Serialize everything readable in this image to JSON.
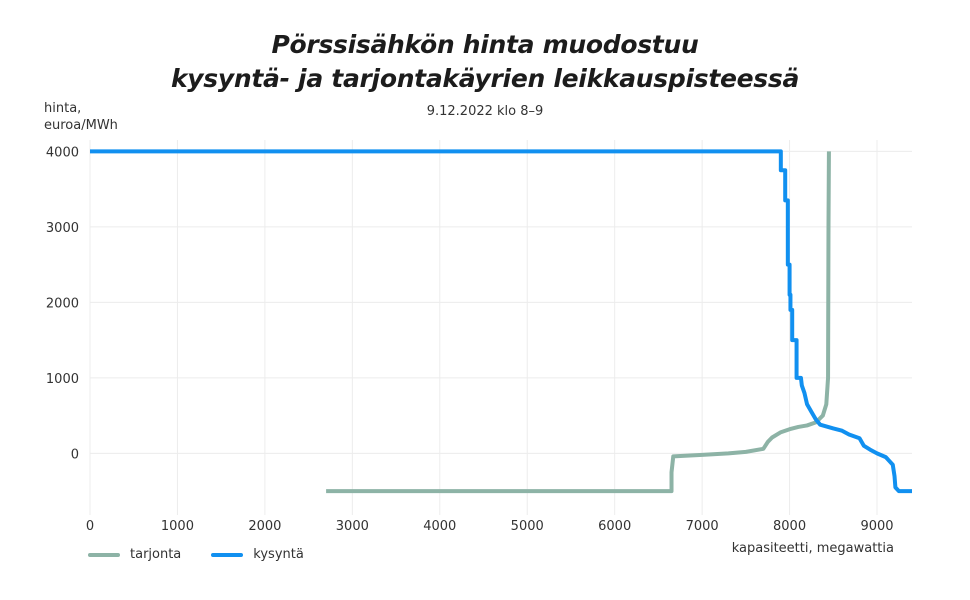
{
  "title_line1": "Pörssisähkön hinta muodostuu",
  "title_line2": "kysyntä- ja tarjontakäyrien leikkauspisteessä",
  "subtitle": "9.12.2022 klo 8–9",
  "colors": {
    "tarjonta": "#8db3a6",
    "kysynta": "#1190f0",
    "grid": "#ececec"
  },
  "chart_data": {
    "type": "line",
    "ylabel_line1": "hinta,",
    "ylabel_line2": "euroa/MWh",
    "xlabel": "kapasiteetti, megawattia",
    "xlim": [
      0,
      9400
    ],
    "ylim": [
      -750,
      4150
    ],
    "x_ticks": [
      0,
      1000,
      2000,
      3000,
      4000,
      5000,
      6000,
      7000,
      8000,
      9000
    ],
    "y_ticks": [
      0,
      1000,
      2000,
      3000,
      4000
    ],
    "grid": true,
    "legend_position": "bottom-left",
    "series": [
      {
        "name": "tarjonta",
        "color": "#8db3a6",
        "points": [
          [
            2700,
            -500
          ],
          [
            6650,
            -500
          ],
          [
            6650,
            -250
          ],
          [
            6670,
            -40
          ],
          [
            7000,
            -20
          ],
          [
            7300,
            0
          ],
          [
            7500,
            20
          ],
          [
            7700,
            60
          ],
          [
            7750,
            150
          ],
          [
            7800,
            210
          ],
          [
            7900,
            280
          ],
          [
            8000,
            320
          ],
          [
            8100,
            350
          ],
          [
            8200,
            370
          ],
          [
            8300,
            410
          ],
          [
            8380,
            500
          ],
          [
            8420,
            650
          ],
          [
            8440,
            1000
          ],
          [
            8445,
            3000
          ],
          [
            8450,
            4000
          ]
        ]
      },
      {
        "name": "kysyntä",
        "color": "#1190f0",
        "points": [
          [
            0,
            4000
          ],
          [
            7900,
            4000
          ],
          [
            7900,
            3750
          ],
          [
            7950,
            3750
          ],
          [
            7950,
            3350
          ],
          [
            7980,
            3350
          ],
          [
            7980,
            2500
          ],
          [
            8000,
            2500
          ],
          [
            8000,
            2100
          ],
          [
            8010,
            2100
          ],
          [
            8010,
            1900
          ],
          [
            8030,
            1900
          ],
          [
            8030,
            1500
          ],
          [
            8080,
            1500
          ],
          [
            8080,
            1000
          ],
          [
            8130,
            1000
          ],
          [
            8140,
            900
          ],
          [
            8170,
            800
          ],
          [
            8200,
            650
          ],
          [
            8250,
            550
          ],
          [
            8300,
            450
          ],
          [
            8350,
            380
          ],
          [
            8500,
            330
          ],
          [
            8600,
            300
          ],
          [
            8680,
            250
          ],
          [
            8800,
            200
          ],
          [
            8850,
            100
          ],
          [
            8920,
            50
          ],
          [
            9000,
            0
          ],
          [
            9100,
            -50
          ],
          [
            9180,
            -150
          ],
          [
            9200,
            -300
          ],
          [
            9210,
            -450
          ],
          [
            9250,
            -500
          ],
          [
            9400,
            -500
          ]
        ]
      }
    ]
  }
}
